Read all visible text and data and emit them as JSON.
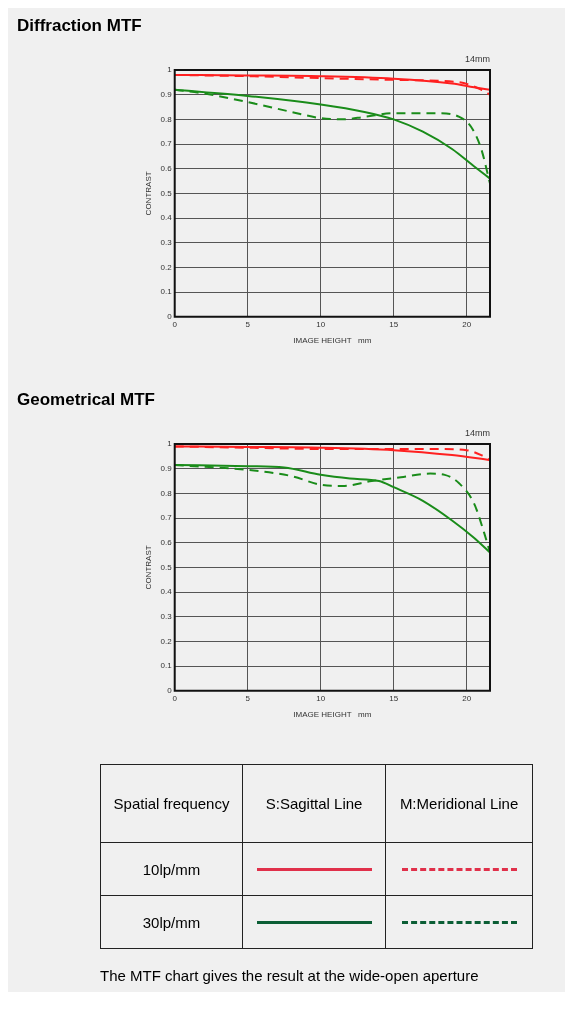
{
  "chart_data": [
    {
      "type": "line",
      "title": "Diffraction MTF",
      "xlabel": "IMAGE HEIGHT   mm",
      "ylabel": "CONTRAST",
      "annotations": [
        "14mm"
      ],
      "xlim": [
        0,
        21.6
      ],
      "xticks": [
        0,
        5,
        10,
        15,
        20
      ],
      "ylim": [
        0,
        1
      ],
      "yticks": [
        0,
        0.1,
        0.2,
        0.3,
        0.4,
        0.5,
        0.6,
        0.7,
        0.8,
        0.9,
        1
      ],
      "grid": true,
      "legend": false,
      "marker": "none",
      "series": [
        {
          "color": "#ff2020",
          "line_style": "solid",
          "x": [
            0,
            5,
            10,
            15,
            19,
            20.5,
            21.6
          ],
          "values": [
            0.98,
            0.978,
            0.975,
            0.965,
            0.945,
            0.93,
            0.92
          ]
        },
        {
          "color": "#ff2020",
          "line_style": "dashed",
          "x": [
            0,
            5,
            10,
            15,
            19.5,
            21,
            21.6
          ],
          "values": [
            0.98,
            0.975,
            0.967,
            0.96,
            0.95,
            0.92,
            0.9
          ]
        },
        {
          "color": "#1a8c1a",
          "line_style": "solid",
          "x": [
            0,
            5,
            10,
            13,
            15,
            17,
            19,
            20.5,
            21.6
          ],
          "values": [
            0.92,
            0.895,
            0.86,
            0.83,
            0.8,
            0.75,
            0.68,
            0.61,
            0.56
          ]
        },
        {
          "color": "#1a8c1a",
          "line_style": "dashed",
          "x": [
            0,
            2,
            5,
            8,
            10,
            11.5,
            13,
            15,
            18,
            19.5,
            20.3,
            21,
            21.6
          ],
          "values": [
            0.92,
            0.905,
            0.87,
            0.83,
            0.805,
            0.8,
            0.81,
            0.825,
            0.825,
            0.81,
            0.77,
            0.68,
            0.54
          ]
        }
      ]
    },
    {
      "type": "line",
      "title": "Geometrical MTF",
      "xlabel": "IMAGE HEIGHT   mm",
      "ylabel": "CONTRAST",
      "annotations": [
        "14mm"
      ],
      "xlim": [
        0,
        21.6
      ],
      "xticks": [
        0,
        5,
        10,
        15,
        20
      ],
      "ylim": [
        0,
        1
      ],
      "yticks": [
        0,
        0.1,
        0.2,
        0.3,
        0.4,
        0.5,
        0.6,
        0.7,
        0.8,
        0.9,
        1
      ],
      "grid": true,
      "legend": false,
      "marker": "none",
      "series": [
        {
          "color": "#ff2020",
          "line_style": "solid",
          "x": [
            0,
            5,
            10,
            15,
            19,
            21.6
          ],
          "values": [
            0.99,
            0.988,
            0.985,
            0.975,
            0.955,
            0.935
          ]
        },
        {
          "color": "#ff2020",
          "line_style": "dashed",
          "x": [
            0,
            5,
            10,
            15,
            18,
            20,
            21,
            21.6
          ],
          "values": [
            0.99,
            0.985,
            0.98,
            0.98,
            0.98,
            0.975,
            0.955,
            0.935
          ]
        },
        {
          "color": "#1a8c1a",
          "line_style": "solid",
          "x": [
            0,
            5,
            7.5,
            10,
            12,
            14,
            15,
            17,
            19,
            20.5,
            21.6
          ],
          "values": [
            0.915,
            0.91,
            0.905,
            0.875,
            0.86,
            0.85,
            0.825,
            0.77,
            0.69,
            0.62,
            0.56
          ]
        },
        {
          "color": "#1a8c1a",
          "line_style": "dashed",
          "x": [
            0,
            5,
            8,
            10,
            11.5,
            13.5,
            15.5,
            17.5,
            18.5,
            19.5,
            20.5,
            21.2,
            21.6
          ],
          "values": [
            0.915,
            0.895,
            0.87,
            0.835,
            0.83,
            0.85,
            0.865,
            0.88,
            0.875,
            0.84,
            0.76,
            0.64,
            0.56
          ]
        }
      ]
    },
    {
      "type": "other",
      "colors": [
        "#e0304a",
        "#0b5e35"
      ],
      "annotations": [
        "Spatial frequency",
        "S:Sagittal Line",
        "M:Meridional Line",
        "10lp/mm",
        "30lp/mm",
        "The MTF chart gives the result at the wide-open aperture"
      ]
    }
  ]
}
